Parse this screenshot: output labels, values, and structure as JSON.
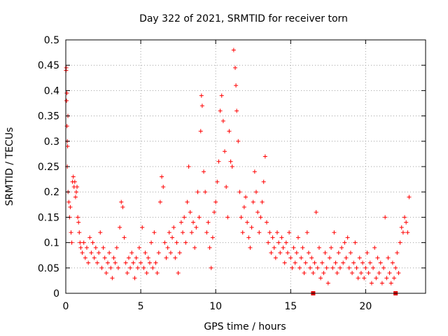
{
  "chart_data": {
    "type": "scatter",
    "title": "Day 322 of 2021, SRMTID for receiver torn",
    "xlabel": "GPS time / hours",
    "ylabel": "SRMTID / TECUs",
    "xlim": [
      0,
      24
    ],
    "ylim": [
      0,
      0.5
    ],
    "x_ticks": [
      0,
      5,
      10,
      15,
      20
    ],
    "y_ticks": [
      0,
      0.05,
      0.1,
      0.15,
      0.2,
      0.25,
      0.3,
      0.35,
      0.4,
      0.45,
      0.5
    ],
    "x_tick_labels": [
      "0",
      "5",
      "10",
      "15",
      "20"
    ],
    "y_tick_labels": [
      "0",
      "0.05",
      "0.1",
      "0.15",
      "0.2",
      "0.25",
      "0.3",
      "0.35",
      "0.4",
      "0.45",
      "0.5"
    ],
    "grid": true,
    "marker": "+",
    "color": "#ff0000",
    "zero_markers_x": [
      16.5,
      22.0
    ],
    "series": [
      {
        "values": [
          [
            0.02,
            0.44
          ],
          [
            0.03,
            0.445
          ],
          [
            0.05,
            0.38
          ],
          [
            0.07,
            0.395
          ],
          [
            0.08,
            0.33
          ],
          [
            0.1,
            0.3
          ],
          [
            0.12,
            0.29
          ],
          [
            0.14,
            0.35
          ],
          [
            0.1,
            0.25
          ],
          [
            0.15,
            0.2
          ],
          [
            0.2,
            0.18
          ],
          [
            0.25,
            0.15
          ],
          [
            0.3,
            0.17
          ],
          [
            0.35,
            0.12
          ],
          [
            0.4,
            0.1
          ],
          [
            0.45,
            0.22
          ],
          [
            0.5,
            0.23
          ],
          [
            0.55,
            0.21
          ],
          [
            0.6,
            0.22
          ],
          [
            0.65,
            0.19
          ],
          [
            0.7,
            0.2
          ],
          [
            0.75,
            0.21
          ],
          [
            0.8,
            0.15
          ],
          [
            0.85,
            0.14
          ],
          [
            0.9,
            0.12
          ],
          [
            0.95,
            0.1
          ],
          [
            1.0,
            0.09
          ],
          [
            1.1,
            0.08
          ],
          [
            1.2,
            0.1
          ],
          [
            1.3,
            0.07
          ],
          [
            1.4,
            0.09
          ],
          [
            1.5,
            0.06
          ],
          [
            1.6,
            0.11
          ],
          [
            1.7,
            0.08
          ],
          [
            1.8,
            0.1
          ],
          [
            1.9,
            0.07
          ],
          [
            2.0,
            0.09
          ],
          [
            2.1,
            0.06
          ],
          [
            2.2,
            0.08
          ],
          [
            2.3,
            0.12
          ],
          [
            2.4,
            0.05
          ],
          [
            2.5,
            0.09
          ],
          [
            2.6,
            0.07
          ],
          [
            2.7,
            0.04
          ],
          [
            2.8,
            0.06
          ],
          [
            2.9,
            0.08
          ],
          [
            3.0,
            0.05
          ],
          [
            3.1,
            0.03
          ],
          [
            3.2,
            0.07
          ],
          [
            3.3,
            0.06
          ],
          [
            3.4,
            0.09
          ],
          [
            3.5,
            0.05
          ],
          [
            3.6,
            0.13
          ],
          [
            3.7,
            0.18
          ],
          [
            3.8,
            0.17
          ],
          [
            3.9,
            0.11
          ],
          [
            4.0,
            0.06
          ],
          [
            4.1,
            0.04
          ],
          [
            4.2,
            0.07
          ],
          [
            4.3,
            0.05
          ],
          [
            4.4,
            0.08
          ],
          [
            4.5,
            0.06
          ],
          [
            4.6,
            0.03
          ],
          [
            4.7,
            0.07
          ],
          [
            4.8,
            0.05
          ],
          [
            4.9,
            0.09
          ],
          [
            5.0,
            0.06
          ],
          [
            5.1,
            0.13
          ],
          [
            5.2,
            0.05
          ],
          [
            5.3,
            0.08
          ],
          [
            5.4,
            0.04
          ],
          [
            5.5,
            0.07
          ],
          [
            5.6,
            0.06
          ],
          [
            5.7,
            0.1
          ],
          [
            5.8,
            0.05
          ],
          [
            5.9,
            0.12
          ],
          [
            6.0,
            0.06
          ],
          [
            6.1,
            0.04
          ],
          [
            6.2,
            0.08
          ],
          [
            6.3,
            0.18
          ],
          [
            6.4,
            0.23
          ],
          [
            6.5,
            0.21
          ],
          [
            6.6,
            0.1
          ],
          [
            6.7,
            0.07
          ],
          [
            6.8,
            0.09
          ],
          [
            6.9,
            0.12
          ],
          [
            7.0,
            0.08
          ],
          [
            7.1,
            0.11
          ],
          [
            7.2,
            0.13
          ],
          [
            7.3,
            0.07
          ],
          [
            7.4,
            0.1
          ],
          [
            7.5,
            0.04
          ],
          [
            7.6,
            0.08
          ],
          [
            7.7,
            0.14
          ],
          [
            7.8,
            0.12
          ],
          [
            7.9,
            0.15
          ],
          [
            8.0,
            0.1
          ],
          [
            8.1,
            0.18
          ],
          [
            8.2,
            0.25
          ],
          [
            8.3,
            0.16
          ],
          [
            8.4,
            0.12
          ],
          [
            8.5,
            0.14
          ],
          [
            8.6,
            0.09
          ],
          [
            8.7,
            0.13
          ],
          [
            8.8,
            0.2
          ],
          [
            8.9,
            0.15
          ],
          [
            9.0,
            0.32
          ],
          [
            9.05,
            0.39
          ],
          [
            9.1,
            0.37
          ],
          [
            9.2,
            0.24
          ],
          [
            9.3,
            0.2
          ],
          [
            9.4,
            0.12
          ],
          [
            9.5,
            0.14
          ],
          [
            9.6,
            0.09
          ],
          [
            9.7,
            0.05
          ],
          [
            9.8,
            0.11
          ],
          [
            9.9,
            0.16
          ],
          [
            10.0,
            0.18
          ],
          [
            10.1,
            0.22
          ],
          [
            10.2,
            0.26
          ],
          [
            10.3,
            0.36
          ],
          [
            10.4,
            0.39
          ],
          [
            10.5,
            0.34
          ],
          [
            10.6,
            0.28
          ],
          [
            10.7,
            0.21
          ],
          [
            10.8,
            0.15
          ],
          [
            10.9,
            0.32
          ],
          [
            11.0,
            0.26
          ],
          [
            11.1,
            0.25
          ],
          [
            11.2,
            0.48
          ],
          [
            11.3,
            0.445
          ],
          [
            11.35,
            0.41
          ],
          [
            11.4,
            0.36
          ],
          [
            11.5,
            0.3
          ],
          [
            11.6,
            0.2
          ],
          [
            11.7,
            0.15
          ],
          [
            11.8,
            0.12
          ],
          [
            11.9,
            0.17
          ],
          [
            12.0,
            0.19
          ],
          [
            12.1,
            0.14
          ],
          [
            12.2,
            0.11
          ],
          [
            12.3,
            0.09
          ],
          [
            12.4,
            0.13
          ],
          [
            12.5,
            0.18
          ],
          [
            12.6,
            0.24
          ],
          [
            12.7,
            0.2
          ],
          [
            12.8,
            0.16
          ],
          [
            12.9,
            0.12
          ],
          [
            13.0,
            0.15
          ],
          [
            13.1,
            0.18
          ],
          [
            13.2,
            0.22
          ],
          [
            13.3,
            0.27
          ],
          [
            13.4,
            0.14
          ],
          [
            13.5,
            0.1
          ],
          [
            13.6,
            0.12
          ],
          [
            13.7,
            0.08
          ],
          [
            13.8,
            0.11
          ],
          [
            13.9,
            0.09
          ],
          [
            14.0,
            0.07
          ],
          [
            14.1,
            0.12
          ],
          [
            14.2,
            0.1
          ],
          [
            14.3,
            0.08
          ],
          [
            14.4,
            0.11
          ],
          [
            14.5,
            0.09
          ],
          [
            14.6,
            0.06
          ],
          [
            14.7,
            0.1
          ],
          [
            14.8,
            0.08
          ],
          [
            14.9,
            0.12
          ],
          [
            15.0,
            0.07
          ],
          [
            15.1,
            0.05
          ],
          [
            15.2,
            0.09
          ],
          [
            15.3,
            0.06
          ],
          [
            15.4,
            0.08
          ],
          [
            15.5,
            0.11
          ],
          [
            15.6,
            0.05
          ],
          [
            15.7,
            0.07
          ],
          [
            15.8,
            0.09
          ],
          [
            15.9,
            0.04
          ],
          [
            16.0,
            0.06
          ],
          [
            16.1,
            0.12
          ],
          [
            16.2,
            0.08
          ],
          [
            16.3,
            0.05
          ],
          [
            16.4,
            0.07
          ],
          [
            16.5,
            0.04
          ],
          [
            16.6,
            0.06
          ],
          [
            16.7,
            0.16
          ],
          [
            16.8,
            0.05
          ],
          [
            16.9,
            0.09
          ],
          [
            17.0,
            0.03
          ],
          [
            17.1,
            0.06
          ],
          [
            17.2,
            0.04
          ],
          [
            17.3,
            0.08
          ],
          [
            17.4,
            0.05
          ],
          [
            17.5,
            0.02
          ],
          [
            17.6,
            0.07
          ],
          [
            17.7,
            0.09
          ],
          [
            17.8,
            0.05
          ],
          [
            17.9,
            0.12
          ],
          [
            18.0,
            0.06
          ],
          [
            18.1,
            0.04
          ],
          [
            18.2,
            0.08
          ],
          [
            18.3,
            0.05
          ],
          [
            18.4,
            0.09
          ],
          [
            18.5,
            0.06
          ],
          [
            18.6,
            0.1
          ],
          [
            18.7,
            0.07
          ],
          [
            18.8,
            0.11
          ],
          [
            18.9,
            0.05
          ],
          [
            19.0,
            0.08
          ],
          [
            19.1,
            0.04
          ],
          [
            19.2,
            0.06
          ],
          [
            19.3,
            0.1
          ],
          [
            19.4,
            0.05
          ],
          [
            19.5,
            0.03
          ],
          [
            19.6,
            0.07
          ],
          [
            19.7,
            0.04
          ],
          [
            19.8,
            0.06
          ],
          [
            19.9,
            0.03
          ],
          [
            20.0,
            0.05
          ],
          [
            20.1,
            0.08
          ],
          [
            20.2,
            0.04
          ],
          [
            20.3,
            0.06
          ],
          [
            20.4,
            0.02
          ],
          [
            20.5,
            0.05
          ],
          [
            20.6,
            0.09
          ],
          [
            20.7,
            0.03
          ],
          [
            20.8,
            0.07
          ],
          [
            20.9,
            0.04
          ],
          [
            21.0,
            0.06
          ],
          [
            21.1,
            0.02
          ],
          [
            21.2,
            0.05
          ],
          [
            21.3,
            0.15
          ],
          [
            21.4,
            0.03
          ],
          [
            21.5,
            0.07
          ],
          [
            21.6,
            0.04
          ],
          [
            21.7,
            0.02
          ],
          [
            21.8,
            0.06
          ],
          [
            21.9,
            0.03
          ],
          [
            22.0,
            0.05
          ],
          [
            22.1,
            0.08
          ],
          [
            22.2,
            0.04
          ],
          [
            22.3,
            0.1
          ],
          [
            22.4,
            0.13
          ],
          [
            22.5,
            0.12
          ],
          [
            22.6,
            0.15
          ],
          [
            22.7,
            0.14
          ],
          [
            22.8,
            0.12
          ],
          [
            22.9,
            0.19
          ]
        ]
      }
    ]
  }
}
